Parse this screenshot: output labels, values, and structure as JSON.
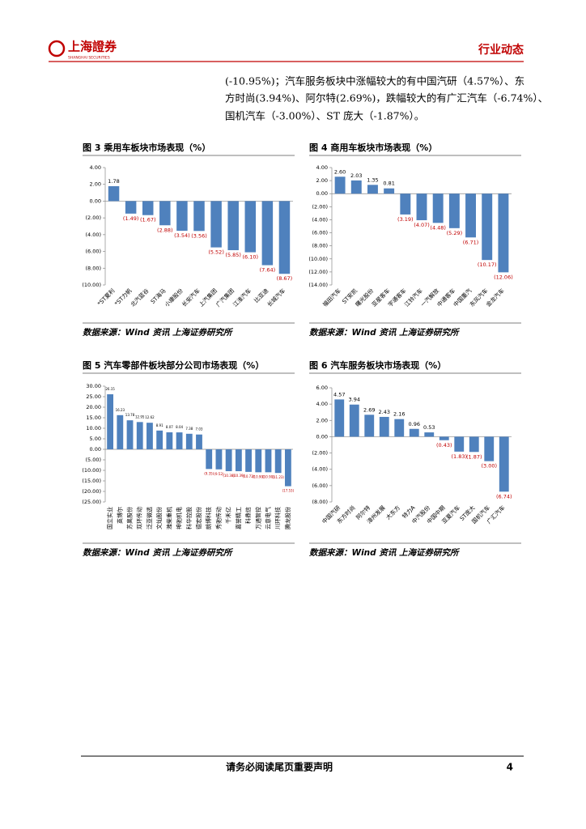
{
  "header": {
    "logo_cn": "上海證券",
    "logo_en": "SHANGHAI SECURITIES",
    "section": "行业动态"
  },
  "paragraph": [
    "(-10.95%)；汽车服务板块中涨幅较大的有中国汽研（4.57%）、东",
    "方时尚(3.94%)、阿尔特(2.69%)，跌幅较大的有广汇汽车（-6.74%）、",
    "国机汽车（-3.00%）、ST 庞大（-1.87%）。"
  ],
  "chart_data": [
    {
      "type": "bar",
      "title": "图 3 乘用车板块市场表现（%）",
      "source": "数据来源：Wind 资讯 上海证券研究所",
      "categories": [
        "*ST夏利",
        "*ST力帆",
        "北汽蓝谷",
        "ST海马",
        "小康股份",
        "长安汽车",
        "上汽集团",
        "广汽集团",
        "江淮汽车",
        "比亚迪",
        "长城汽车"
      ],
      "values": [
        1.78,
        -1.49,
        -1.67,
        -2.88,
        -3.54,
        -3.56,
        -5.52,
        -5.85,
        -6.1,
        -7.64,
        -8.67
      ],
      "value_labels": [
        "1.78",
        "(1.49)",
        "(1.67)",
        "(2.88)",
        "(3.54)",
        "(3.56)",
        "(5.52)",
        "(5.85)",
        "(6.10)",
        "(7.64)",
        "(8.67)"
      ],
      "color": "#4f81bd",
      "negative_label_color": "#c00000",
      "label_rotation": -45,
      "ylim": [
        -10,
        4
      ],
      "yticks": [
        {
          "value": 4,
          "label": "4.00"
        },
        {
          "value": 2,
          "label": "2.00"
        },
        {
          "value": 0,
          "label": "0.00"
        },
        {
          "value": -2,
          "label": "(2.00)"
        },
        {
          "value": -4,
          "label": "(4.00)"
        },
        {
          "value": -6,
          "label": "(6.00)"
        },
        {
          "value": -8,
          "label": "(8.00)"
        },
        {
          "value": -10,
          "label": "(10.00)"
        }
      ]
    },
    {
      "type": "bar",
      "title": "图 4 商用车板块市场表现（%）",
      "source": "数据来源：Wind 资讯 上海证券研究所",
      "categories": [
        "福田汽车",
        "ST安凯",
        "曙光股份",
        "亚星客车",
        "宇通客车",
        "江铃汽车",
        "一汽解放",
        "中通客车",
        "中国重汽",
        "东风汽车",
        "金龙汽车"
      ],
      "values": [
        2.6,
        2.03,
        1.35,
        0.81,
        -3.19,
        -4.07,
        -4.48,
        -5.29,
        -6.71,
        -10.17,
        -12.06
      ],
      "value_labels": [
        "2.60",
        "2.03",
        "1.35",
        "0.81",
        "(3.19)",
        "(4.07)",
        "(4.48)",
        "(5.29)",
        "(6.71)",
        "(10.17)",
        "(12.06)"
      ],
      "color": "#4f81bd",
      "negative_label_color": "#c00000",
      "label_rotation": -45,
      "ylim": [
        -14,
        4
      ],
      "yticks": [
        {
          "value": 4,
          "label": "4.00"
        },
        {
          "value": 2,
          "label": "2.00"
        },
        {
          "value": 0,
          "label": "0.00"
        },
        {
          "value": -2,
          "label": "(2.00)"
        },
        {
          "value": -4,
          "label": "(4.00)"
        },
        {
          "value": -6,
          "label": "(6.00)"
        },
        {
          "value": -8,
          "label": "(8.00)"
        },
        {
          "value": -10,
          "label": "(10.00)"
        },
        {
          "value": -12,
          "label": "(12.00)"
        },
        {
          "value": -14,
          "label": "(14.00)"
        }
      ]
    },
    {
      "type": "bar",
      "title": "图 5 汽车零部件板块部分公司市场表现（%）",
      "source": "数据来源：Wind 资讯 上海证券研究所",
      "categories": [
        "国立实业",
        "英博尔",
        "苏奥股份",
        "双环传动",
        "泛亚微透",
        "文灿股份",
        "潍柴重机",
        "神驰机电",
        "科华控股",
        "德宏股份",
        "朗博科技",
        "秀驰传动",
        "千禾亿",
        "嘉誉精工",
        "科鼎信",
        "万通智控",
        "云意电气",
        "川环科技",
        "腾龙股份"
      ],
      "values": [
        26.15,
        16.23,
        13.78,
        12.95,
        12.62,
        8.91,
        8.07,
        8.04,
        7.38,
        7.03,
        -9.35,
        -9.52,
        -10.38,
        -10.39,
        -10.72,
        -10.9,
        -10.9,
        -11.23,
        -17.53
      ],
      "value_labels": [
        "26.15",
        "16.23",
        "13.78",
        "12.95",
        "12.62",
        "8.91",
        "8.07",
        "8.04",
        "7.38",
        "7.03",
        "(9.35)",
        "(9.52)",
        "(10.38)",
        "(10.39)",
        "(10.72)",
        "(10.90)",
        "(10.90)",
        "(11.23)",
        "(17.53)"
      ],
      "color": "#4f81bd",
      "negative_label_color": "#c00000",
      "label_rotation": -90,
      "ylim": [
        -25,
        30
      ],
      "yticks": [
        {
          "value": 30,
          "label": "30.00"
        },
        {
          "value": 25,
          "label": "25.00"
        },
        {
          "value": 20,
          "label": "20.00"
        },
        {
          "value": 15,
          "label": "15.00"
        },
        {
          "value": 10,
          "label": "10.00"
        },
        {
          "value": 5,
          "label": "5.00"
        },
        {
          "value": 0,
          "label": "0.00"
        },
        {
          "value": -5,
          "label": "(5.00)"
        },
        {
          "value": -10,
          "label": "(10.00)"
        },
        {
          "value": -15,
          "label": "(15.00)"
        },
        {
          "value": -20,
          "label": "(20.00)"
        },
        {
          "value": -25,
          "label": "(25.00)"
        }
      ]
    },
    {
      "type": "bar",
      "title": "图 6 汽车服务板块市场表现（%）",
      "source": "数据来源：Wind 资讯 上海证券研究所",
      "categories": [
        "中国汽研",
        "东方时尚",
        "阿尔特",
        "漳州发展",
        "大东方",
        "特力A",
        "中汽股份",
        "中国中期",
        "亚夏汽车",
        "ST庞大",
        "国机汽车",
        "广汇汽车"
      ],
      "values": [
        4.57,
        3.94,
        2.69,
        2.43,
        2.16,
        0.96,
        0.53,
        -0.43,
        -1.83,
        -1.87,
        -3.0,
        -6.74
      ],
      "value_labels": [
        "4.57",
        "3.94",
        "2.69",
        "2.43",
        "2.16",
        "0.96",
        "0.53",
        "(0.43)",
        "(1.83)",
        "(1.87)",
        "(3.00)",
        "(6.74)"
      ],
      "color": "#4f81bd",
      "negative_label_color": "#c00000",
      "label_rotation": -45,
      "ylim": [
        -8,
        6
      ],
      "yticks": [
        {
          "value": 6,
          "label": "6.00"
        },
        {
          "value": 4,
          "label": "4.00"
        },
        {
          "value": 2,
          "label": "2.00"
        },
        {
          "value": 0,
          "label": "0.00"
        },
        {
          "value": -2,
          "label": "(2.00)"
        },
        {
          "value": -4,
          "label": "(4.00)"
        },
        {
          "value": -6,
          "label": "(6.00)"
        },
        {
          "value": -8,
          "label": "(8.00)"
        }
      ]
    }
  ],
  "footer": {
    "notice": "请务必阅读尾页重要声明",
    "page": "4"
  }
}
